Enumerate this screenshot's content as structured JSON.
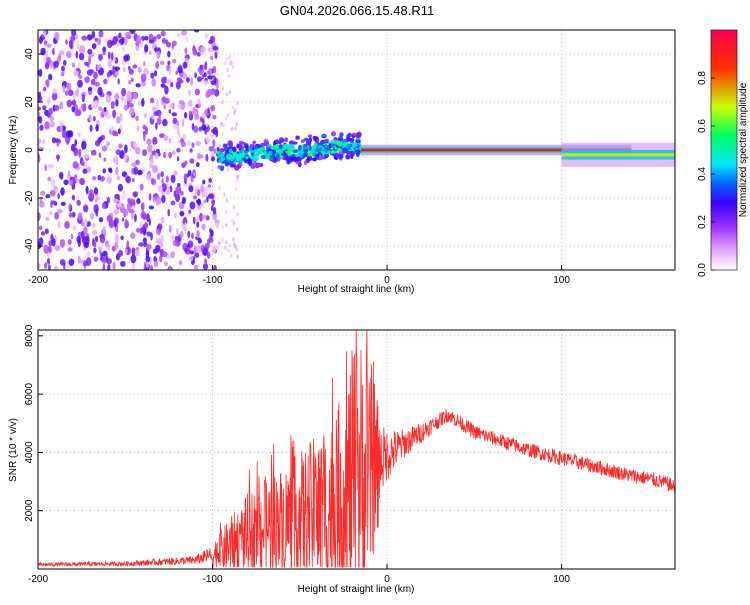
{
  "page_title": "GN04.2026.066.15.48.R11",
  "chart_data": [
    {
      "type": "heatmap",
      "title": "GN04.2026.066.15.48.R11",
      "xlabel": "Height of straight line (km)",
      "ylabel": "Frequency (Hz)",
      "xlim": [
        -200,
        165
      ],
      "ylim": [
        -50,
        50
      ],
      "x_ticks": [
        -200,
        -100,
        0,
        100
      ],
      "y_ticks": [
        -40,
        -20,
        0,
        20,
        40
      ],
      "grid": true,
      "colorbar": {
        "label": "Normalized spectral amplitude",
        "range": [
          0,
          1
        ],
        "ticks": [
          "0.0",
          "0.2",
          "0.4",
          "0.6",
          "0.8"
        ],
        "colors": [
          "#ffffff",
          "#e6a8ff",
          "#9b30ff",
          "#3c00ff",
          "#0064ff",
          "#00e5ff",
          "#00ff60",
          "#c8ff00",
          "#ff3000",
          "#ff0050"
        ]
      },
      "regions": [
        {
          "name": "broadband noise",
          "x_range": [
            -200,
            -97
          ],
          "freq_range": [
            -50,
            50
          ],
          "amplitude": 0.15
        },
        {
          "name": "cluster",
          "x_range": [
            -97,
            -15
          ],
          "freq_center": 0,
          "freq_halfwidth": 6,
          "amplitude": 0.4
        },
        {
          "name": "narrow tone",
          "x_range": [
            -15,
            140
          ],
          "freq": 0,
          "amplitude": 0.95
        },
        {
          "name": "fading tone",
          "x_range": [
            100,
            165
          ],
          "freq": -2,
          "amplitude": 0.7
        }
      ]
    },
    {
      "type": "line",
      "xlabel": "Height of straight line (km)",
      "ylabel": "SNR (10 * v/v)",
      "xlim": [
        -200,
        165
      ],
      "ylim": [
        0,
        8200
      ],
      "x_ticks": [
        -200,
        -100,
        0,
        100
      ],
      "y_ticks": [
        2000,
        4000,
        6000,
        8000
      ],
      "grid": true,
      "series": [
        {
          "name": "SNR",
          "color": "#ff2a2a",
          "x": [
            -200,
            -150,
            -110,
            -100,
            -90,
            -80,
            -70,
            -60,
            -50,
            -40,
            -30,
            -25,
            -20,
            -15,
            -10,
            -5,
            0,
            10,
            20,
            30,
            35,
            40,
            50,
            60,
            70,
            80,
            90,
            100,
            110,
            120,
            130,
            140,
            150,
            160,
            165
          ],
          "y": [
            150,
            180,
            300,
            500,
            900,
            1300,
            1600,
            1800,
            2000,
            2200,
            2400,
            2800,
            3200,
            3400,
            3600,
            3700,
            3900,
            4300,
            4700,
            5100,
            5300,
            5100,
            4700,
            4500,
            4300,
            4100,
            3950,
            3800,
            3650,
            3500,
            3350,
            3200,
            3100,
            2950,
            2800
          ],
          "spread": [
            60,
            80,
            150,
            300,
            600,
            900,
            1100,
            1200,
            1400,
            1700,
            2000,
            2400,
            3000,
            3200,
            2200,
            1400,
            900,
            500,
            350,
            250,
            250,
            250,
            250,
            250,
            250,
            250,
            250,
            250,
            250,
            250,
            250,
            250,
            250,
            250,
            250
          ]
        }
      ]
    }
  ]
}
